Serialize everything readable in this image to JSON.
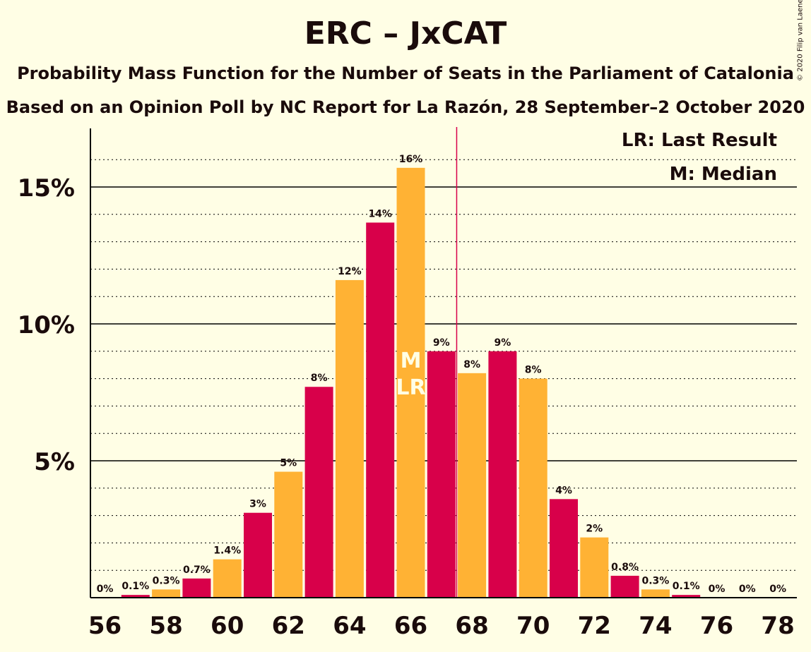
{
  "title": "ERC – JxCAT",
  "subtitle1": "Probability Mass Function for the Number of Seats in the Parliament of Catalonia",
  "subtitle2": "Based on an Opinion Poll by NC Report for La Razón, 28 September–2 October 2020",
  "legend": {
    "last_result": "LR: Last Result",
    "median": "M: Median"
  },
  "copyright": "© 2020 Filip van Laenen",
  "colors": {
    "bar_primary": "#D8004A",
    "bar_secondary": "#FFB234",
    "background": "#FFFEE5",
    "marker_line": "#D8004A",
    "median_text": "#FFFEE5"
  },
  "chart_data": {
    "type": "bar",
    "x": [
      56,
      57,
      58,
      59,
      60,
      61,
      62,
      63,
      64,
      65,
      66,
      67,
      68,
      69,
      70,
      71,
      72,
      73,
      74,
      75,
      76,
      77,
      78
    ],
    "values": [
      0,
      0.1,
      0.3,
      0.7,
      1.4,
      3.1,
      4.6,
      7.7,
      11.6,
      13.7,
      15.7,
      9.0,
      8.2,
      9.0,
      8.0,
      3.6,
      2.2,
      0.8,
      0.3,
      0.1,
      0,
      0,
      0
    ],
    "labels": [
      "0%",
      "0.1%",
      "0.3%",
      "0.7%",
      "1.4%",
      "3%",
      "5%",
      "8%",
      "12%",
      "14%",
      "16%",
      "9%",
      "8%",
      "9%",
      "8%",
      "4%",
      "2%",
      "0.8%",
      "0.3%",
      "0.1%",
      "0%",
      "0%",
      "0%"
    ],
    "x_ticks": [
      "56",
      "58",
      "60",
      "62",
      "64",
      "66",
      "68",
      "70",
      "72",
      "74",
      "76",
      "78"
    ],
    "y_ticks": [
      {
        "value": 5,
        "label": "5%"
      },
      {
        "value": 10,
        "label": "10%"
      },
      {
        "value": 15,
        "label": "15%"
      }
    ],
    "ylim": [
      0,
      17
    ],
    "median": 66,
    "last_result": 66,
    "majority_line": 67.5,
    "median_label": "M",
    "last_result_label": "LR",
    "grid": "dotted every 1%, solid every 5%"
  }
}
